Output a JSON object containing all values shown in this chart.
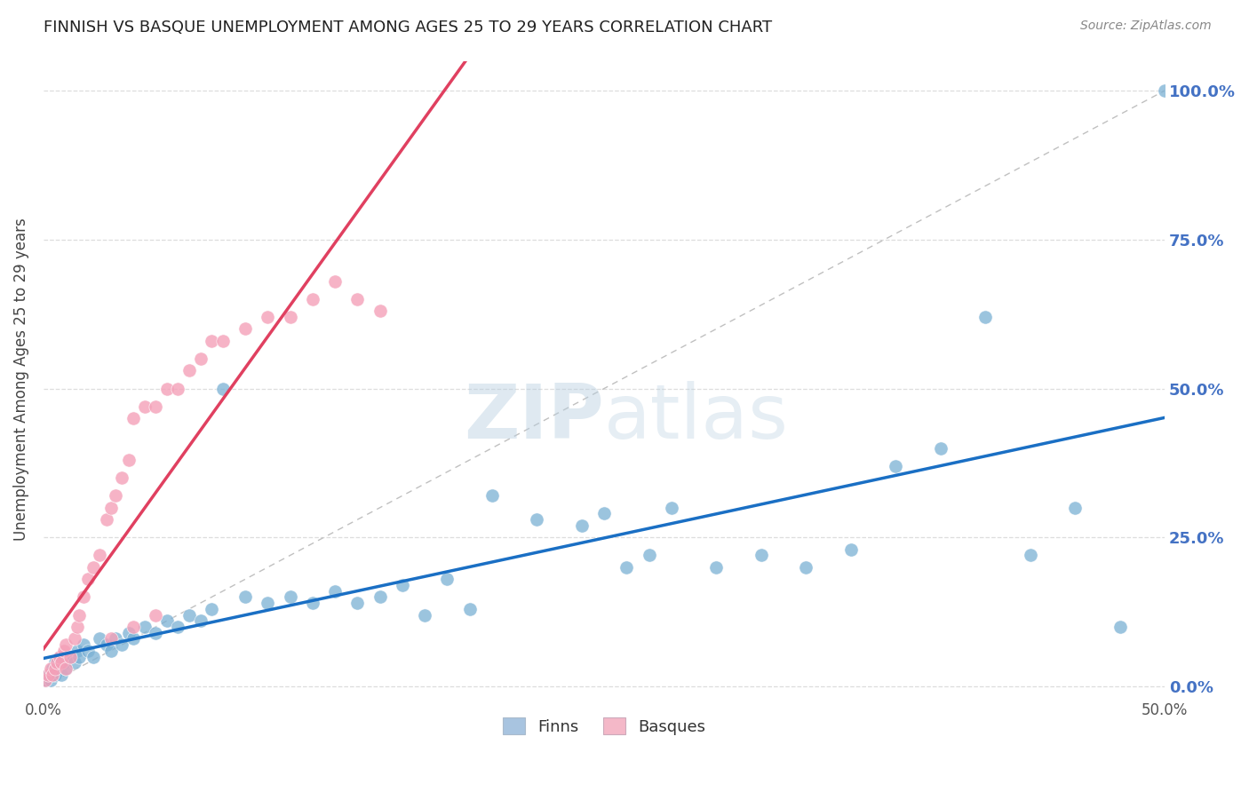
{
  "title": "FINNISH VS BASQUE UNEMPLOYMENT AMONG AGES 25 TO 29 YEARS CORRELATION CHART",
  "source": "Source: ZipAtlas.com",
  "ylabel_label": "Unemployment Among Ages 25 to 29 years",
  "watermark_zip": "ZIP",
  "watermark_atlas": "atlas",
  "legend_finn_color": "#a8c4e0",
  "legend_basque_color": "#f4b8c8",
  "finn_scatter_color": "#7ab0d4",
  "basque_scatter_color": "#f4a0b8",
  "finn_line_color": "#1a6fc4",
  "basque_line_color": "#e04060",
  "bottom_legend_finn": "Finns",
  "bottom_legend_basque": "Basques",
  "xlim": [
    0.0,
    0.5
  ],
  "ylim": [
    -0.02,
    1.05
  ],
  "finn_scatter_x": [
    0.001,
    0.002,
    0.003,
    0.004,
    0.005,
    0.005,
    0.006,
    0.007,
    0.008,
    0.009,
    0.01,
    0.012,
    0.014,
    0.015,
    0.016,
    0.018,
    0.02,
    0.022,
    0.025,
    0.028,
    0.03,
    0.032,
    0.035,
    0.038,
    0.04,
    0.045,
    0.05,
    0.055,
    0.06,
    0.065,
    0.07,
    0.075,
    0.08,
    0.09,
    0.1,
    0.11,
    0.12,
    0.13,
    0.14,
    0.15,
    0.16,
    0.17,
    0.18,
    0.19,
    0.2,
    0.22,
    0.24,
    0.25,
    0.26,
    0.27,
    0.28,
    0.3,
    0.32,
    0.34,
    0.36,
    0.38,
    0.4,
    0.42,
    0.44,
    0.46,
    0.48,
    0.5
  ],
  "finn_scatter_y": [
    0.01,
    0.02,
    0.01,
    0.03,
    0.02,
    0.04,
    0.03,
    0.05,
    0.02,
    0.04,
    0.03,
    0.05,
    0.04,
    0.06,
    0.05,
    0.07,
    0.06,
    0.05,
    0.08,
    0.07,
    0.06,
    0.08,
    0.07,
    0.09,
    0.08,
    0.1,
    0.09,
    0.11,
    0.1,
    0.12,
    0.11,
    0.13,
    0.5,
    0.15,
    0.14,
    0.15,
    0.14,
    0.16,
    0.14,
    0.15,
    0.17,
    0.12,
    0.18,
    0.13,
    0.32,
    0.28,
    0.27,
    0.29,
    0.2,
    0.22,
    0.3,
    0.2,
    0.22,
    0.2,
    0.23,
    0.37,
    0.4,
    0.62,
    0.22,
    0.3,
    0.1,
    1.0
  ],
  "basque_scatter_x": [
    0.001,
    0.002,
    0.003,
    0.004,
    0.005,
    0.006,
    0.007,
    0.008,
    0.009,
    0.01,
    0.01,
    0.012,
    0.014,
    0.015,
    0.016,
    0.018,
    0.02,
    0.022,
    0.025,
    0.028,
    0.03,
    0.032,
    0.035,
    0.038,
    0.04,
    0.045,
    0.05,
    0.055,
    0.06,
    0.065,
    0.07,
    0.075,
    0.08,
    0.09,
    0.1,
    0.11,
    0.12,
    0.13,
    0.14,
    0.15,
    0.03,
    0.04,
    0.05
  ],
  "basque_scatter_y": [
    0.01,
    0.02,
    0.03,
    0.02,
    0.03,
    0.04,
    0.05,
    0.04,
    0.06,
    0.07,
    0.03,
    0.05,
    0.08,
    0.1,
    0.12,
    0.15,
    0.18,
    0.2,
    0.22,
    0.28,
    0.3,
    0.32,
    0.35,
    0.38,
    0.45,
    0.47,
    0.47,
    0.5,
    0.5,
    0.53,
    0.55,
    0.58,
    0.58,
    0.6,
    0.62,
    0.62,
    0.65,
    0.68,
    0.65,
    0.63,
    0.08,
    0.1,
    0.12
  ],
  "background_color": "#ffffff",
  "grid_color": "#dddddd",
  "right_yaxis_color": "#4472c4",
  "title_fontsize": 13,
  "source_fontsize": 10
}
